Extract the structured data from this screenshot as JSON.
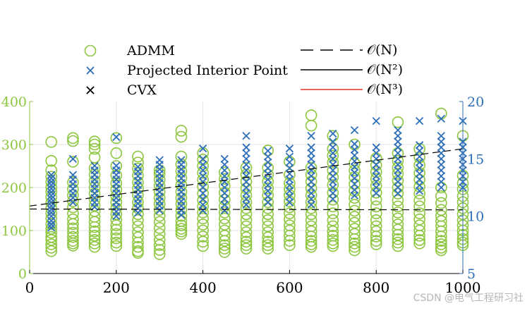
{
  "colors": {
    "admm": "#8dc63f",
    "pip": "#2e6fba",
    "cvx": "#000000",
    "o3": "#e0302a",
    "axis_left": "#8dc63f",
    "axis_right": "#2e6fba",
    "grid": "#e3e3e3",
    "watermark": "#b7b7b7"
  },
  "watermark": "CSDN @电气工程研习社",
  "legend": {
    "items": [
      {
        "label": "ADMM",
        "marker": "circle",
        "color": "#8dc63f"
      },
      {
        "label": "Projected Interior Point",
        "marker": "x",
        "color": "#2e6fba"
      },
      {
        "label": "CVX",
        "marker": "x",
        "color": "#000000"
      }
    ],
    "line_items": [
      {
        "label": "𝒪(N)",
        "style": "dashed",
        "color": "#000000"
      },
      {
        "label": "𝒪(N²)",
        "style": "solid",
        "color": "#000000"
      },
      {
        "label": "𝒪(N³)",
        "style": "solid",
        "color": "#e0302a"
      }
    ]
  },
  "chart_data": {
    "type": "scatter",
    "grid": true,
    "legend_placement": "top",
    "x_axis": {
      "range": [
        0,
        1000
      ],
      "ticks": [
        0,
        200,
        400,
        600,
        800,
        1000
      ],
      "label": ""
    },
    "y_left": {
      "range": [
        0,
        400
      ],
      "ticks": [
        0,
        100,
        200,
        300,
        400
      ],
      "label": ""
    },
    "y_right": {
      "range": [
        5,
        20
      ],
      "ticks": [
        5,
        10,
        15,
        20
      ],
      "label": ""
    },
    "series": [
      {
        "name": "ADMM",
        "axis": "left",
        "marker": "circle",
        "x": [
          50,
          100,
          150,
          200,
          250,
          300,
          350,
          400,
          450,
          500,
          550,
          600,
          650,
          700,
          750,
          800,
          850,
          900,
          950,
          1000
        ],
        "y_values": [
          [
            52,
            60,
            68,
            78,
            85,
            95,
            104,
            115,
            128,
            140,
            152,
            165,
            178,
            190,
            200,
            213,
            225,
            240,
            262,
            306
          ],
          [
            65,
            70,
            76,
            85,
            95,
            105,
            115,
            126,
            140,
            154,
            168,
            182,
            196,
            212,
            260,
            308,
            315
          ],
          [
            62,
            70,
            78,
            88,
            98,
            108,
            120,
            132,
            145,
            158,
            172,
            186,
            200,
            215,
            230,
            245,
            270,
            290,
            300,
            307
          ],
          [
            64,
            72,
            82,
            92,
            102,
            112,
            125,
            138,
            152,
            166,
            180,
            195,
            210,
            228,
            250,
            280,
            315
          ],
          [
            48,
            52,
            62,
            72,
            84,
            96,
            110,
            124,
            138,
            152,
            166,
            182,
            198,
            212,
            228,
            244,
            258,
            272
          ],
          [
            45,
            55,
            66,
            78,
            92,
            106,
            120,
            134,
            148,
            162,
            176,
            190,
            204,
            218,
            232,
            240
          ],
          [
            92,
            98,
            104,
            112,
            122,
            134,
            148,
            162,
            176,
            190,
            206,
            222,
            238,
            254,
            272,
            318,
            332
          ],
          [
            64,
            74,
            86,
            100,
            114,
            128,
            142,
            156,
            170,
            186,
            202,
            218,
            234,
            250,
            265,
            280
          ],
          [
            50,
            58,
            66,
            76,
            88,
            100,
            114,
            128,
            142,
            156,
            172,
            188,
            204,
            220,
            235
          ],
          [
            58,
            66,
            74,
            84,
            96,
            110,
            124,
            138,
            152,
            166,
            182,
            198,
            214,
            230,
            246
          ],
          [
            58,
            66,
            74,
            84,
            96,
            110,
            124,
            138,
            152,
            166,
            182,
            198,
            214,
            230,
            246,
            286
          ],
          [
            66,
            76,
            88,
            100,
            112,
            126,
            140,
            154,
            168,
            182,
            196,
            210,
            230,
            260
          ],
          [
            62,
            68,
            76,
            86,
            98,
            110,
            124,
            138,
            152,
            166,
            182,
            198,
            214,
            230,
            246,
            344,
            368
          ],
          [
            64,
            70,
            78,
            88,
            98,
            110,
            124,
            140,
            156,
            172,
            188,
            206,
            224,
            240,
            258,
            274,
            290,
            320
          ],
          [
            54,
            62,
            70,
            80,
            92,
            104,
            118,
            132,
            146,
            160,
            176,
            192,
            208,
            224,
            240,
            256,
            300
          ],
          [
            68,
            76,
            86,
            98,
            110,
            124,
            140,
            156,
            172,
            188,
            204,
            220,
            236,
            252,
            268
          ],
          [
            64,
            72,
            80,
            90,
            102,
            114,
            128,
            142,
            156,
            170,
            186,
            200,
            216,
            232,
            246,
            262,
            280,
            352
          ],
          [
            70,
            78,
            88,
            100,
            112,
            126,
            140,
            156,
            170,
            186,
            202,
            218,
            234,
            252,
            270,
            290
          ],
          [
            54,
            60,
            68,
            76,
            86,
            98,
            110,
            122,
            134,
            148,
            164,
            180,
            200,
            372
          ],
          [
            66,
            72,
            80,
            90,
            100,
            112,
            124,
            138,
            152,
            166,
            180,
            196,
            210,
            228,
            320
          ]
        ]
      },
      {
        "name": "Projected Interior Point",
        "axis": "right",
        "marker": "x",
        "x": [
          50,
          100,
          150,
          200,
          250,
          300,
          350,
          400,
          450,
          500,
          550,
          600,
          650,
          700,
          750,
          800,
          850,
          900,
          950,
          1000
        ],
        "y_values": [
          [
            9.0,
            9.3,
            9.6,
            10.0,
            10.3,
            10.6,
            10.9,
            11.2,
            11.5,
            11.8,
            12.1,
            12.4,
            12.7,
            13.0,
            13.3,
            13.6
          ],
          [
            11.2,
            11.6,
            12.0,
            12.4,
            12.8,
            13.2,
            13.6,
            15.0
          ],
          [
            10.8,
            11.2,
            11.6,
            12.0,
            12.4,
            12.8,
            13.2,
            13.6,
            14.0,
            14.4
          ],
          [
            10.0,
            10.4,
            10.8,
            11.2,
            11.6,
            12.0,
            12.4,
            12.8,
            13.2,
            13.6,
            14.0,
            14.4,
            16.9
          ],
          [
            10.3,
            10.7,
            11.1,
            11.5,
            11.9,
            12.3,
            12.7,
            13.1,
            13.5,
            13.9,
            14.3
          ],
          [
            10.5,
            10.9,
            11.3,
            11.7,
            12.1,
            12.5,
            12.9,
            13.3,
            13.7,
            14.1,
            14.5,
            14.9
          ],
          [
            10.1,
            10.5,
            10.9,
            11.3,
            11.7,
            12.1,
            12.5,
            12.9,
            13.3,
            13.7,
            14.1,
            14.5,
            14.9
          ],
          [
            10.5,
            11.0,
            11.5,
            12.0,
            12.5,
            13.0,
            13.5,
            14.0,
            14.5,
            15.0,
            15.9
          ],
          [
            10.5,
            11.0,
            11.5,
            12.0,
            12.5,
            13.0,
            13.5,
            14.0,
            14.5,
            15.0
          ],
          [
            11.0,
            11.5,
            12.0,
            12.5,
            13.0,
            13.5,
            14.0,
            14.5,
            15.0,
            15.5,
            16.0,
            17.0
          ],
          [
            11.2,
            11.7,
            12.2,
            12.7,
            13.2,
            13.7,
            14.2,
            14.7,
            15.2,
            15.7
          ],
          [
            11.2,
            11.7,
            12.2,
            12.7,
            13.2,
            13.7,
            14.2,
            14.7,
            15.2,
            15.9
          ],
          [
            11.0,
            11.5,
            12.0,
            12.5,
            13.0,
            13.5,
            14.0,
            14.5,
            15.0,
            15.5,
            16.0,
            17.0
          ],
          [
            11.5,
            12.0,
            12.5,
            13.0,
            13.5,
            14.0,
            14.5,
            15.0,
            15.5,
            16.0,
            16.5,
            17.2
          ],
          [
            11.8,
            12.3,
            12.8,
            13.3,
            13.8,
            14.3,
            14.8,
            15.3,
            15.8,
            16.3,
            17.5
          ],
          [
            12.0,
            12.5,
            13.0,
            13.5,
            14.0,
            14.5,
            15.0,
            15.5,
            16.0,
            18.3
          ],
          [
            12.0,
            12.5,
            13.0,
            13.5,
            14.0,
            14.5,
            15.0,
            15.5,
            16.0,
            16.5,
            17.0,
            17.5
          ],
          [
            12.2,
            12.7,
            13.2,
            13.7,
            14.2,
            14.7,
            15.2,
            15.7,
            16.2,
            18.3
          ],
          [
            12.5,
            13.0,
            13.5,
            14.0,
            14.5,
            15.0,
            15.5,
            16.0,
            16.5,
            17.0,
            18.5
          ],
          [
            12.5,
            13.0,
            13.5,
            14.0,
            14.5,
            15.0,
            15.5,
            16.0,
            16.5,
            18.3
          ]
        ]
      }
    ],
    "trend_lines": [
      {
        "legend": "𝒪(N)",
        "axis": "left",
        "style": "dashed",
        "x": [
          0,
          1000
        ],
        "y": [
          157,
          290
        ]
      },
      {
        "legend": "𝒪(N)",
        "axis": "left",
        "style": "dashed",
        "x": [
          0,
          1000
        ],
        "y": [
          150,
          148
        ]
      }
    ]
  }
}
